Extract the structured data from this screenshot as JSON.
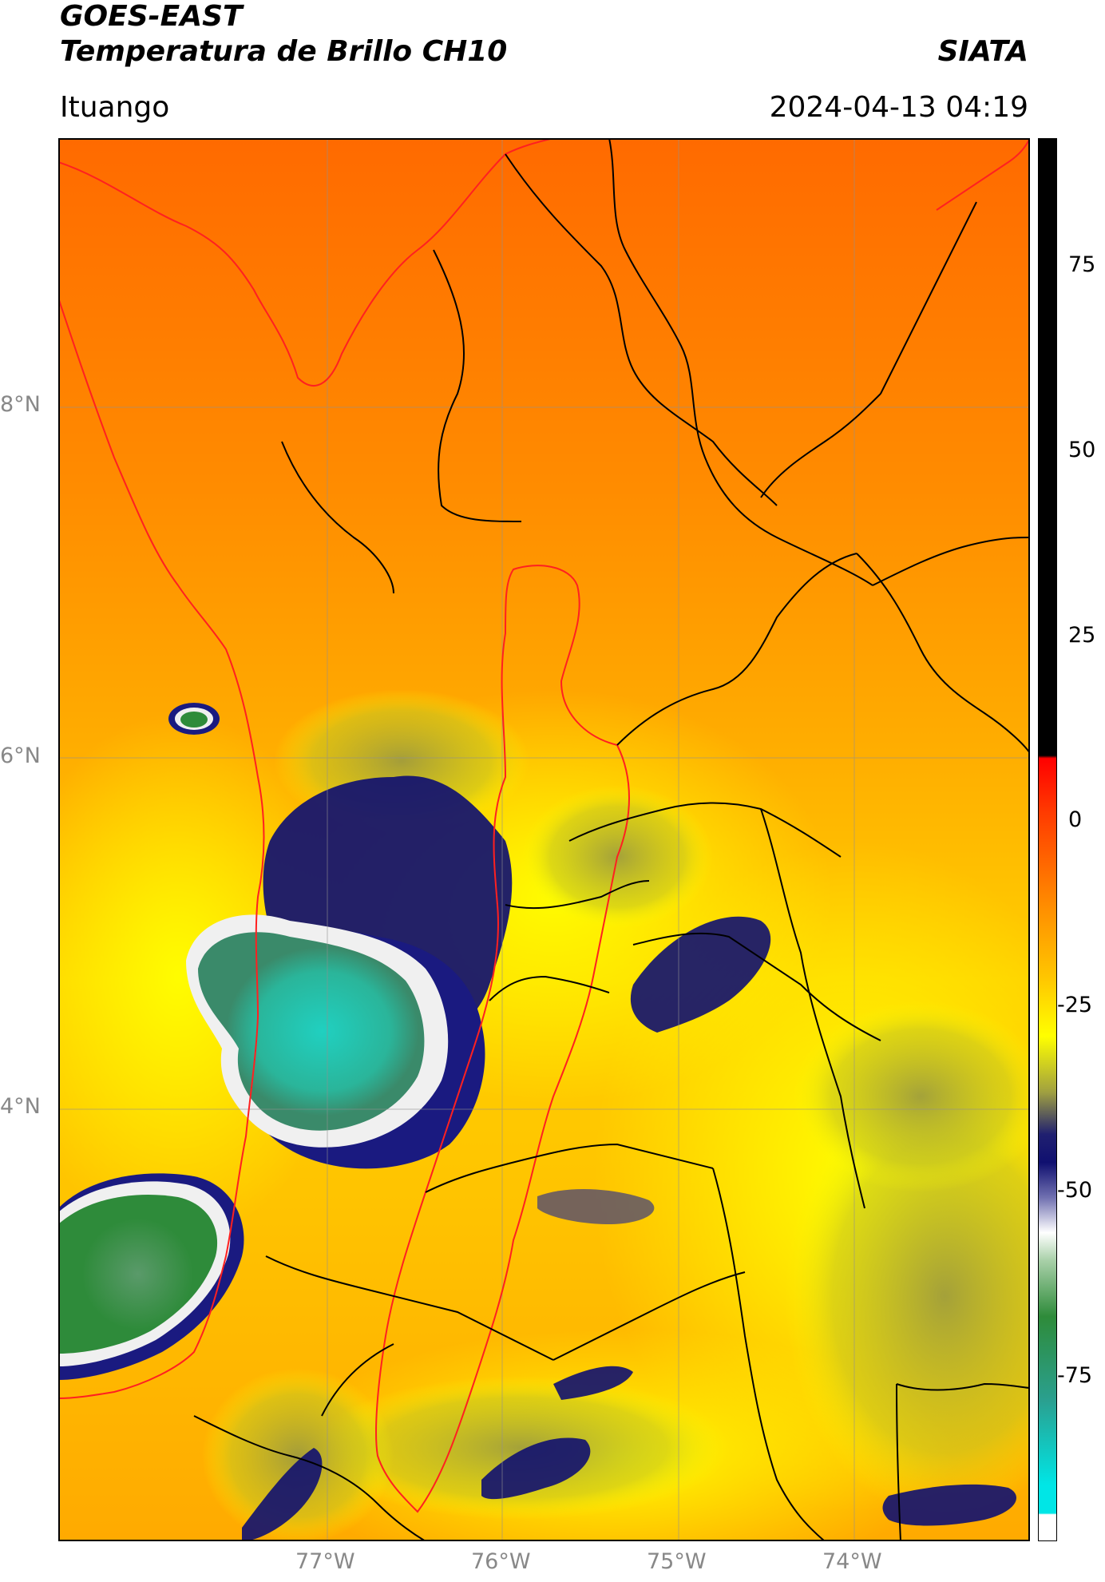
{
  "header": {
    "satellite": "GOES-EAST",
    "product": "Temperatura de Brillo CH10",
    "organization": "SIATA",
    "location": "Ituango",
    "datetime": "2024-04-13 04:19"
  },
  "map": {
    "lat_labels": [
      "8°N",
      "6°N",
      "4°N"
    ],
    "lon_labels": [
      "77°W",
      "76°W",
      "75°W",
      "74°W"
    ],
    "border_colors": {
      "coast_and_region": "#ff2020",
      "departments": "#000000"
    }
  },
  "colorbar": {
    "ticks": [
      "75",
      "50",
      "25",
      "0",
      "-25",
      "-50",
      "-75"
    ],
    "range": [
      -95,
      93
    ],
    "colors": {
      "top": "#000000",
      "red": "#ff0000",
      "orange": "#ff8000",
      "yellow": "#ffff00",
      "olive": "#8a8a40",
      "navy": "#101070",
      "white": "#ffffff",
      "green": "#2e8b3a",
      "cyan": "#00e6e6"
    }
  }
}
